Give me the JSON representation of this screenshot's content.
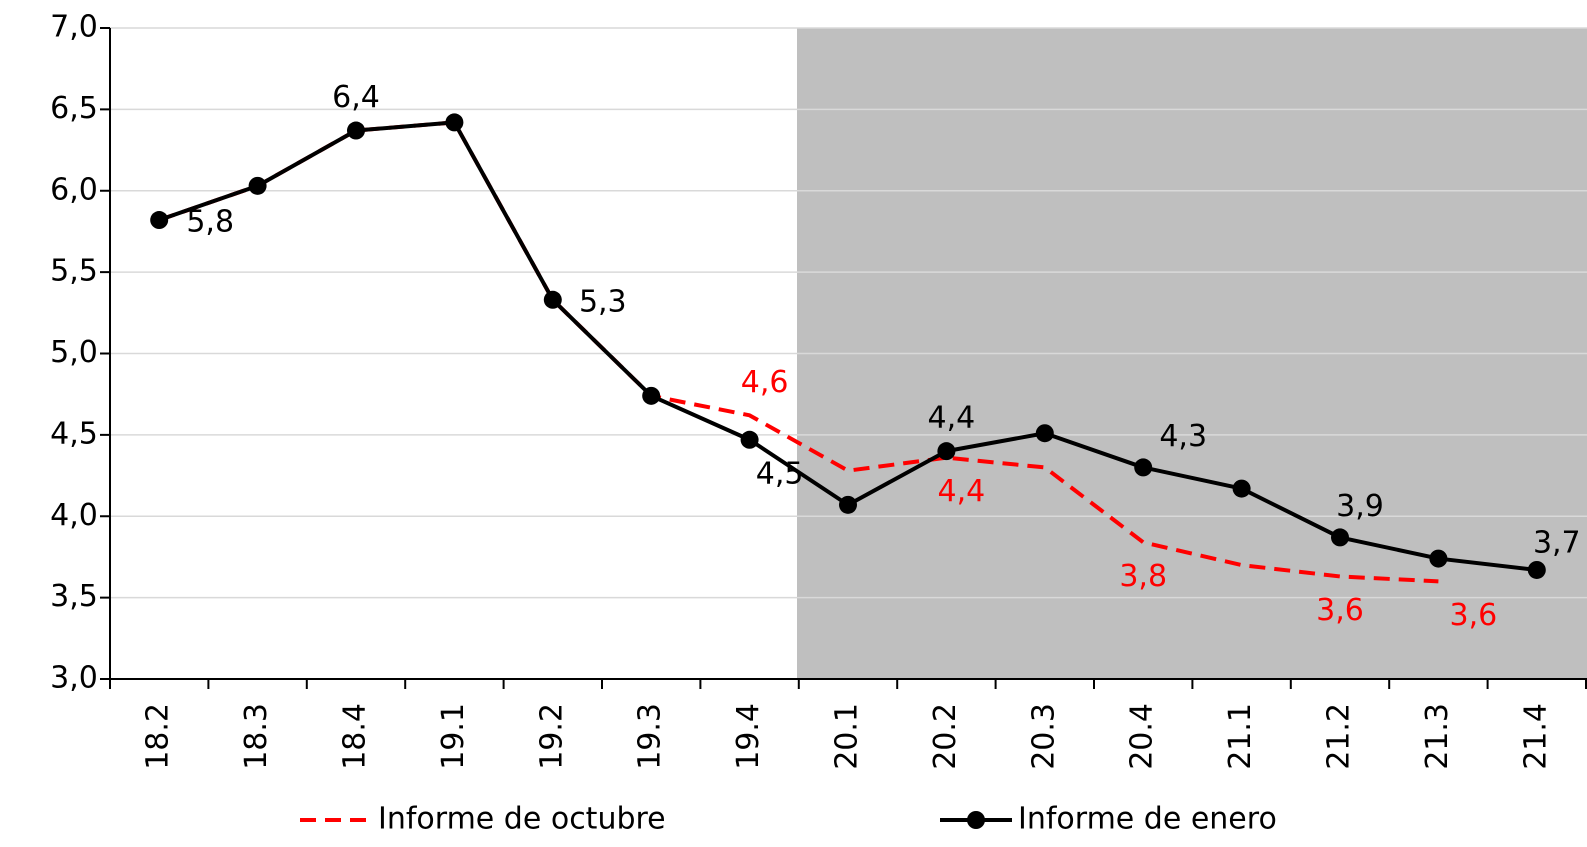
{
  "chart_data": {
    "type": "line",
    "categories": [
      "18.2",
      "18.3",
      "18.4",
      "19.1",
      "19.2",
      "19.3",
      "19.4",
      "20.1",
      "20.2",
      "20.3",
      "20.4",
      "21.1",
      "21.2",
      "21.3",
      "21.4"
    ],
    "series": [
      {
        "name": "Informe de octubre",
        "color": "#ff0000",
        "dashed": true,
        "values": [
          5.82,
          6.03,
          6.37,
          6.42,
          5.33,
          4.74,
          4.62,
          4.28,
          4.36,
          4.3,
          3.84,
          3.7,
          3.63,
          3.6,
          null
        ],
        "value_labels": [
          null,
          null,
          null,
          null,
          null,
          null,
          "4,6",
          null,
          "4,4",
          null,
          "3,8",
          null,
          "3,6",
          "3,6",
          null
        ]
      },
      {
        "name": "Informe de enero",
        "color": "#000000",
        "markers": true,
        "values": [
          5.82,
          6.03,
          6.37,
          6.42,
          5.33,
          4.74,
          4.47,
          4.07,
          4.4,
          4.51,
          4.3,
          4.17,
          3.87,
          3.74,
          3.67
        ],
        "value_labels": [
          "5,8",
          null,
          "6,4",
          null,
          "5,3",
          null,
          "4,5",
          null,
          "4,4",
          null,
          "4,3",
          null,
          "3,9",
          null,
          "3,7"
        ]
      }
    ],
    "ylim": [
      3,
      7
    ],
    "yticks": [
      {
        "value": 3,
        "label": "3,0"
      },
      {
        "value": 3.5,
        "label": "3,5"
      },
      {
        "value": 4,
        "label": "4,0"
      },
      {
        "value": 4.5,
        "label": "4,5"
      },
      {
        "value": 5,
        "label": "5,0"
      },
      {
        "value": 5.5,
        "label": "5,5"
      },
      {
        "value": 6,
        "label": "6,0"
      },
      {
        "value": 6.5,
        "label": "6,5"
      },
      {
        "value": 7,
        "label": "7,0"
      }
    ],
    "grid": true
  }
}
